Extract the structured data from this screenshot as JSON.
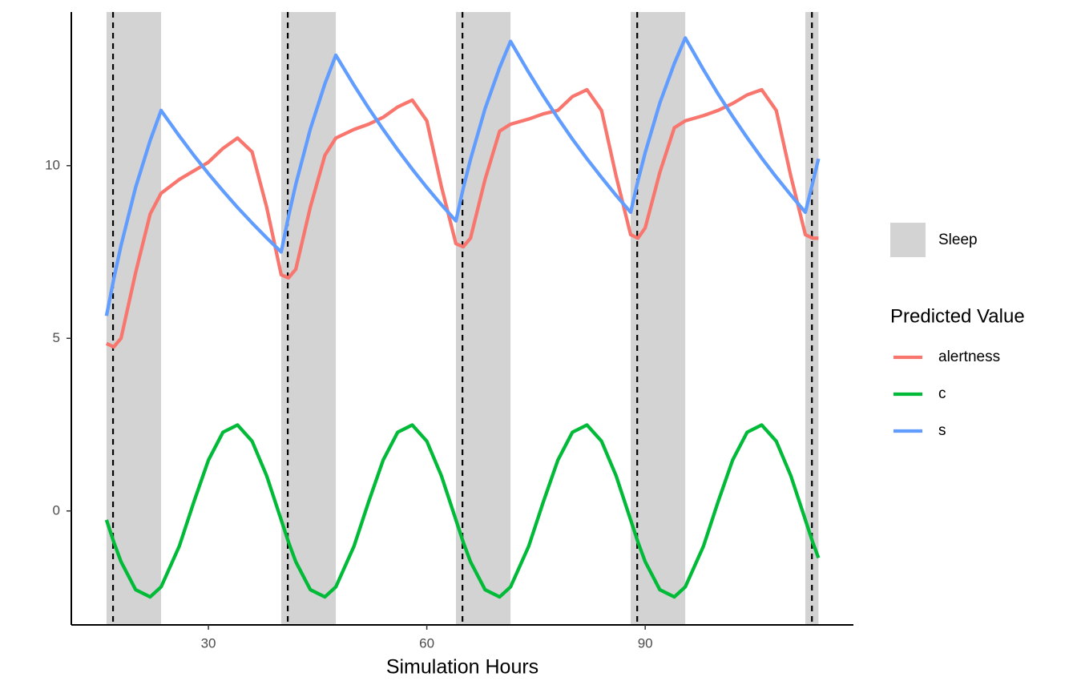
{
  "chart_data": {
    "type": "line",
    "x_label": "Simulation Hours",
    "legend_title": "Predicted Value",
    "sleep_label": "Sleep",
    "sleep_color": "#d3d3d3",
    "sleep": [
      [
        16,
        23.5
      ],
      [
        40,
        47.5
      ],
      [
        64,
        71.5
      ],
      [
        88,
        95.5
      ],
      [
        112,
        113.8
      ]
    ],
    "vlines": [
      16.9,
      40.9,
      64.9,
      88.9,
      112.9
    ],
    "xlim": [
      11.17,
      118.6
    ],
    "ylim": [
      -3.3,
      14.45
    ],
    "xticks": [
      30,
      60,
      90
    ],
    "yticks": [
      0,
      5,
      10
    ],
    "x": [
      16,
      17,
      18,
      20,
      22,
      23.5,
      26,
      28,
      30,
      32,
      34,
      36,
      38,
      40,
      41,
      42,
      44,
      46,
      47.5,
      50,
      52,
      54,
      56,
      58,
      60,
      62,
      64,
      65,
      66,
      68,
      70,
      71.5,
      74,
      76,
      78,
      80,
      82,
      84,
      86,
      88,
      89,
      90,
      92,
      94,
      95.5,
      98,
      100,
      102,
      104,
      106,
      108,
      110,
      112,
      113,
      113.8
    ],
    "series": [
      {
        "name": "alertness",
        "color": "#F8766D",
        "values": [
          4.85,
          4.75,
          5.0,
          6.9,
          8.6,
          9.2,
          9.6,
          9.85,
          10.1,
          10.5,
          10.8,
          10.4,
          8.8,
          6.84,
          6.75,
          7.0,
          8.8,
          10.3,
          10.8,
          11.05,
          11.2,
          11.4,
          11.7,
          11.9,
          11.3,
          9.4,
          7.74,
          7.65,
          7.9,
          9.6,
          11.0,
          11.2,
          11.35,
          11.5,
          11.6,
          12.0,
          12.2,
          11.6,
          9.7,
          8.0,
          7.9,
          8.2,
          9.8,
          11.1,
          11.3,
          11.45,
          11.6,
          11.8,
          12.05,
          12.2,
          11.6,
          9.7,
          8.0,
          7.9,
          7.9
        ]
      },
      {
        "name": "c",
        "color": "#00BA38",
        "values": [
          -0.26,
          -0.9,
          -1.47,
          -2.28,
          -2.49,
          -2.2,
          -1.02,
          0.26,
          1.47,
          2.28,
          2.49,
          2.02,
          1.02,
          -0.26,
          -0.9,
          -1.47,
          -2.28,
          -2.49,
          -2.2,
          -1.02,
          0.26,
          1.47,
          2.28,
          2.49,
          2.02,
          1.02,
          -0.26,
          -0.9,
          -1.47,
          -2.28,
          -2.49,
          -2.2,
          -1.02,
          0.26,
          1.47,
          2.28,
          2.49,
          2.02,
          1.02,
          -0.26,
          -0.9,
          -1.47,
          -2.28,
          -2.49,
          -2.2,
          -1.02,
          0.26,
          1.47,
          2.28,
          2.49,
          2.02,
          1.02,
          -0.26,
          -0.9,
          -1.36
        ]
      },
      {
        "name": "s",
        "color": "#619CFF",
        "values": [
          5.65,
          6.72,
          7.69,
          9.37,
          10.73,
          11.6,
          10.86,
          10.3,
          9.77,
          9.27,
          8.79,
          8.34,
          7.91,
          7.5,
          8.53,
          9.46,
          11.06,
          12.37,
          13.2,
          12.33,
          11.67,
          11.05,
          10.46,
          9.9,
          9.37,
          8.87,
          8.4,
          9.34,
          10.18,
          11.65,
          12.84,
          13.6,
          12.7,
          12.02,
          11.38,
          10.77,
          10.2,
          9.66,
          9.14,
          8.65,
          9.56,
          10.38,
          11.81,
          12.96,
          13.7,
          12.78,
          12.08,
          11.43,
          10.81,
          10.22,
          9.67,
          9.15,
          8.65,
          9.5,
          10.2
        ]
      }
    ]
  }
}
